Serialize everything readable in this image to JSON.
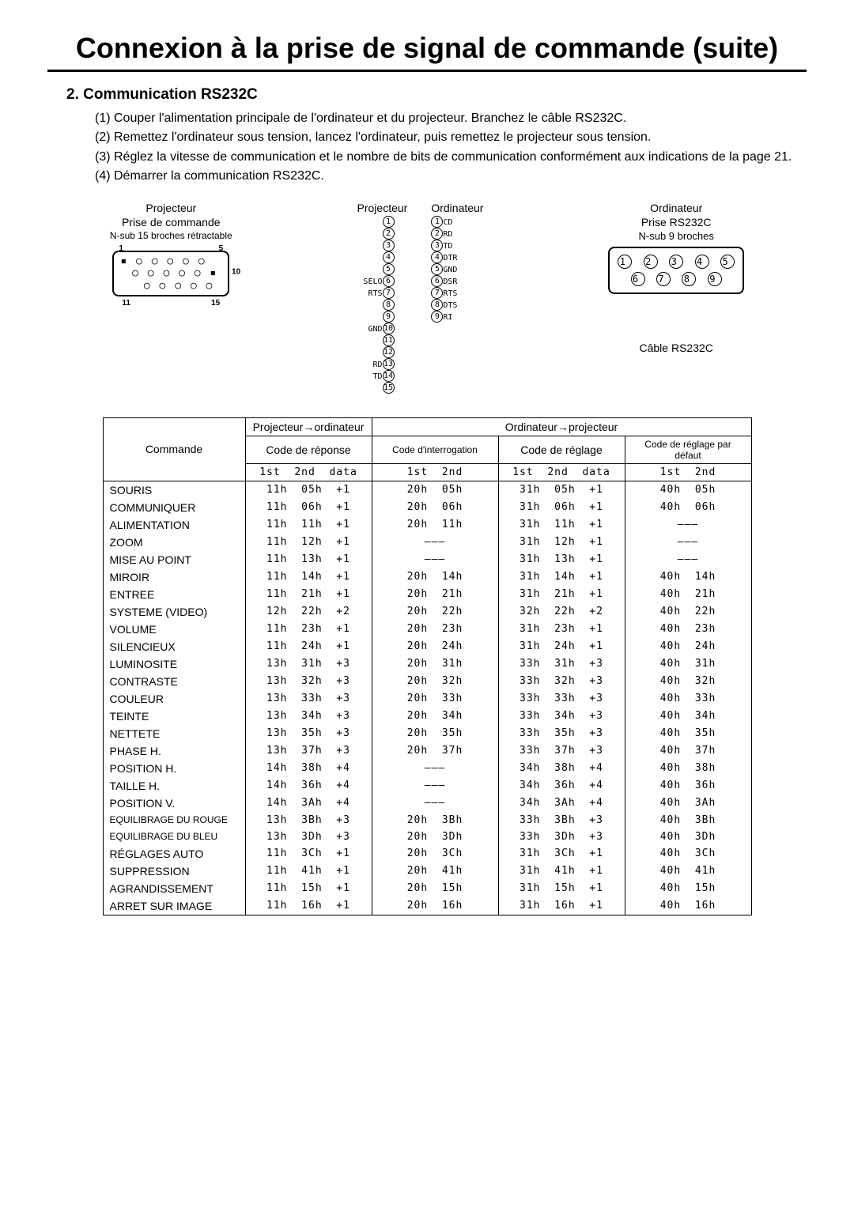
{
  "title": "Connexion à la prise de signal de commande (suite)",
  "section_heading": "2.  Communication RS232C",
  "instructions": [
    "(1) Couper l'alimentation principale de l'ordinateur et du projecteur. Branchez le câble RS232C.",
    "(2) Remettez l'ordinateur sous tension, lancez l'ordinateur, puis remettez le projecteur sous tension.",
    "(3) Réglez la vitesse de communication et le nombre de bits de communication conformément aux indications de la page 21.",
    "(4) Démarrer la communication RS232C."
  ],
  "diagram": {
    "projector_box": {
      "l1": "Projecteur",
      "l2": "Prise de commande",
      "l3": "N-sub 15 broches rétractable"
    },
    "wiring_header_left": "Projecteur",
    "wiring_header_right": "Ordinateur",
    "computer_box": {
      "l1": "Ordinateur",
      "l2": "Prise RS232C",
      "l3": "N-sub 9 broches"
    },
    "cable_label": "Câble RS232C",
    "left_pins": {
      "6": "SELO",
      "7": "RTS",
      "10": "GND",
      "13": "RD",
      "14": "TD"
    },
    "right_pins": {
      "1": "CD",
      "2": "RD",
      "3": "TD",
      "4": "DTR",
      "5": "GND",
      "6": "DSR",
      "7": "RTS",
      "8": "DTS",
      "9": "RI"
    }
  },
  "table": {
    "corner": "Commande",
    "group_headers": {
      "proj_to_pc": "Projecteur→ordinateur",
      "pc_to_proj": "Ordinateur→projecteur"
    },
    "col_headers": {
      "response": "Code de réponse",
      "query": "Code d'interrogation",
      "set": "Code de réglage",
      "default": "Code de réglage par défaut"
    },
    "sub_headers": {
      "response": "1st  2nd  data",
      "query": "1st  2nd",
      "set": "1st  2nd  data",
      "default": "1st  2nd"
    },
    "rows": [
      {
        "cmd": "SOURIS",
        "r": "11h  05h  +1",
        "q": "20h  05h",
        "s": "31h  05h  +1",
        "d": "40h  05h"
      },
      {
        "cmd": "COMMUNIQUER",
        "r": "11h  06h  +1",
        "q": "20h  06h",
        "s": "31h  06h  +1",
        "d": "40h  06h"
      },
      {
        "cmd": "ALIMENTATION",
        "r": "11h  11h  +1",
        "q": "20h  11h",
        "s": "31h  11h  +1",
        "d": "———"
      },
      {
        "cmd": "ZOOM",
        "r": "11h  12h  +1",
        "q": "———",
        "s": "31h  12h  +1",
        "d": "———"
      },
      {
        "cmd": "MISE AU POINT",
        "r": "11h  13h  +1",
        "q": "———",
        "s": "31h  13h  +1",
        "d": "———"
      },
      {
        "cmd": "MIROIR",
        "r": "11h  14h  +1",
        "q": "20h  14h",
        "s": "31h  14h  +1",
        "d": "40h  14h"
      },
      {
        "cmd": "ENTREE",
        "r": "11h  21h  +1",
        "q": "20h  21h",
        "s": "31h  21h  +1",
        "d": "40h  21h"
      },
      {
        "cmd": "SYSTEME (VIDEO)",
        "r": "12h  22h  +2",
        "q": "20h  22h",
        "s": "32h  22h  +2",
        "d": "40h  22h"
      },
      {
        "cmd": "VOLUME",
        "r": "11h  23h  +1",
        "q": "20h  23h",
        "s": "31h  23h  +1",
        "d": "40h  23h"
      },
      {
        "cmd": "SILENCIEUX",
        "r": "11h  24h  +1",
        "q": "20h  24h",
        "s": "31h  24h  +1",
        "d": "40h  24h"
      },
      {
        "cmd": "LUMINOSITE",
        "r": "13h  31h  +3",
        "q": "20h  31h",
        "s": "33h  31h  +3",
        "d": "40h  31h"
      },
      {
        "cmd": "CONTRASTE",
        "r": "13h  32h  +3",
        "q": "20h  32h",
        "s": "33h  32h  +3",
        "d": "40h  32h"
      },
      {
        "cmd": "COULEUR",
        "r": "13h  33h  +3",
        "q": "20h  33h",
        "s": "33h  33h  +3",
        "d": "40h  33h"
      },
      {
        "cmd": "TEINTE",
        "r": "13h  34h  +3",
        "q": "20h  34h",
        "s": "33h  34h  +3",
        "d": "40h  34h"
      },
      {
        "cmd": "NETTETE",
        "r": "13h  35h  +3",
        "q": "20h  35h",
        "s": "33h  35h  +3",
        "d": "40h  35h"
      },
      {
        "cmd": "PHASE H.",
        "r": "13h  37h  +3",
        "q": "20h  37h",
        "s": "33h  37h  +3",
        "d": "40h  37h"
      },
      {
        "cmd": "POSITION H.",
        "r": "14h  38h  +4",
        "q": "———",
        "s": "34h  38h  +4",
        "d": "40h  38h"
      },
      {
        "cmd": "TAILLE H.",
        "r": "14h  36h  +4",
        "q": "———",
        "s": "34h  36h  +4",
        "d": "40h  36h"
      },
      {
        "cmd": "POSITION V.",
        "r": "14h  3Ah  +4",
        "q": "———",
        "s": "34h  3Ah  +4",
        "d": "40h  3Ah"
      },
      {
        "cmd": "EQUILIBRAGE DU ROUGE",
        "r": "13h  3Bh  +3",
        "q": "20h  3Bh",
        "s": "33h  3Bh  +3",
        "d": "40h  3Bh"
      },
      {
        "cmd": "EQUILIBRAGE DU BLEU",
        "r": "13h  3Dh  +3",
        "q": "20h  3Dh",
        "s": "33h  3Dh  +3",
        "d": "40h  3Dh"
      },
      {
        "cmd": "RÉGLAGES AUTO",
        "r": "11h  3Ch  +1",
        "q": "20h  3Ch",
        "s": "31h  3Ch  +1",
        "d": "40h  3Ch"
      },
      {
        "cmd": "SUPPRESSION",
        "r": "11h  41h  +1",
        "q": "20h  41h",
        "s": "31h  41h  +1",
        "d": "40h  41h"
      },
      {
        "cmd": "AGRANDISSEMENT",
        "r": "11h  15h  +1",
        "q": "20h  15h",
        "s": "31h  15h  +1",
        "d": "40h  15h"
      },
      {
        "cmd": "ARRET SUR IMAGE",
        "r": "11h  16h  +1",
        "q": "20h  16h",
        "s": "31h  16h  +1",
        "d": "40h  16h"
      }
    ]
  }
}
